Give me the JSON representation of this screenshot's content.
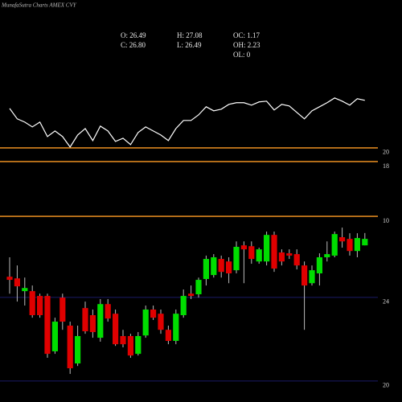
{
  "chart_data": [
    {
      "type": "line",
      "title": "MunafaSutra Charts AMEX CVY",
      "color": "#ffffff",
      "grid_color": "#d9851f",
      "values": [
        25.76,
        24.24,
        23.76,
        23.06,
        23.76,
        21.65,
        22.47,
        21.65,
        20.12,
        21.88,
        22.82,
        21.06,
        23.18,
        22.47,
        20.94,
        21.41,
        20.47,
        22.24,
        23.06,
        22.47,
        21.88,
        21.06,
        22.82,
        24.0,
        24.0,
        24.82,
        26.0,
        25.41,
        25.65,
        26.35,
        26.59,
        26.59,
        26.24,
        26.71,
        26.82,
        25.53,
        26.35,
        26.12,
        25.18,
        24.24,
        25.41,
        26.0,
        26.59,
        27.29,
        26.82,
        26.24,
        27.18,
        26.94
      ],
      "ylim": [
        9.3,
        36.9
      ],
      "yticks": [
        20,
        18,
        10
      ],
      "grid": true
    },
    {
      "type": "candlestick",
      "up_color": "#00dd00",
      "down_color": "#e00000",
      "grid_color": "#1a1a66",
      "annotations": [
        "O: 26.49",
        "H: 27.08",
        "OC: 1.17",
        "C: 26.80",
        "L: 26.49",
        "OH: 2.23",
        "OL: 0"
      ],
      "open": [
        24.99,
        24.91,
        24.3,
        24.3,
        24.07,
        24.07,
        21.42,
        23.99,
        22.65,
        20.84,
        23.49,
        23.15,
        22.07,
        23.68,
        23.22,
        22.15,
        22.15,
        21.3,
        22.18,
        23.42,
        23.22,
        22.45,
        21.92,
        23.15,
        24.18,
        24.15,
        24.88,
        25.07,
        25.84,
        25.72,
        25.3,
        26.49,
        26.45,
        25.72,
        25.72,
        26.99,
        26.15,
        26.11,
        26.07,
        25.53,
        24.68,
        25.15,
        25.92,
        26.0,
        26.88,
        26.8,
        26.22,
        26.49
      ],
      "high": [
        25.92,
        25.53,
        24.95,
        24.57,
        24.18,
        24.18,
        23.03,
        24.18,
        22.84,
        22.65,
        23.8,
        23.42,
        23.92,
        23.92,
        23.42,
        22.45,
        22.26,
        22.34,
        23.61,
        23.61,
        23.42,
        22.65,
        23.42,
        24.38,
        24.57,
        24.95,
        26.0,
        26.07,
        26.0,
        25.92,
        26.68,
        26.68,
        26.68,
        26.38,
        27.15,
        27.15,
        26.3,
        26.3,
        26.3,
        25.72,
        25.53,
        26.11,
        26.68,
        27.15,
        27.34,
        27.07,
        27.07,
        27.08
      ],
      "low": [
        24.18,
        23.8,
        23.61,
        23.03,
        23.03,
        21.11,
        21.3,
        22.45,
        20.34,
        20.72,
        22.26,
        22.07,
        21.88,
        22.84,
        21.68,
        21.61,
        21.11,
        21.22,
        22.07,
        22.92,
        22.26,
        21.76,
        21.76,
        23.03,
        23.92,
        23.99,
        24.57,
        24.95,
        24.95,
        24.68,
        25.15,
        24.68,
        25.61,
        25.61,
        25.53,
        25.22,
        25.53,
        25.84,
        25.34,
        22.45,
        24.57,
        24.57,
        25.72,
        25.92,
        26.38,
        26.0,
        25.92,
        26.49
      ],
      "close": [
        24.84,
        24.53,
        24.45,
        23.15,
        23.15,
        21.3,
        22.84,
        22.84,
        20.61,
        22.15,
        22.38,
        22.34,
        23.68,
        22.99,
        21.76,
        21.76,
        21.22,
        22.15,
        23.42,
        23.03,
        22.45,
        21.92,
        23.22,
        24.07,
        24.07,
        24.84,
        25.84,
        25.92,
        25.22,
        25.15,
        26.42,
        26.3,
        25.84,
        26.3,
        26.99,
        25.38,
        25.72,
        26.0,
        25.53,
        24.57,
        25.3,
        25.92,
        26.07,
        27.03,
        26.68,
        26.22,
        26.84,
        26.8
      ],
      "ylim": [
        19.38,
        28.42
      ],
      "yticks": [
        24,
        20
      ],
      "grid": true
    }
  ]
}
